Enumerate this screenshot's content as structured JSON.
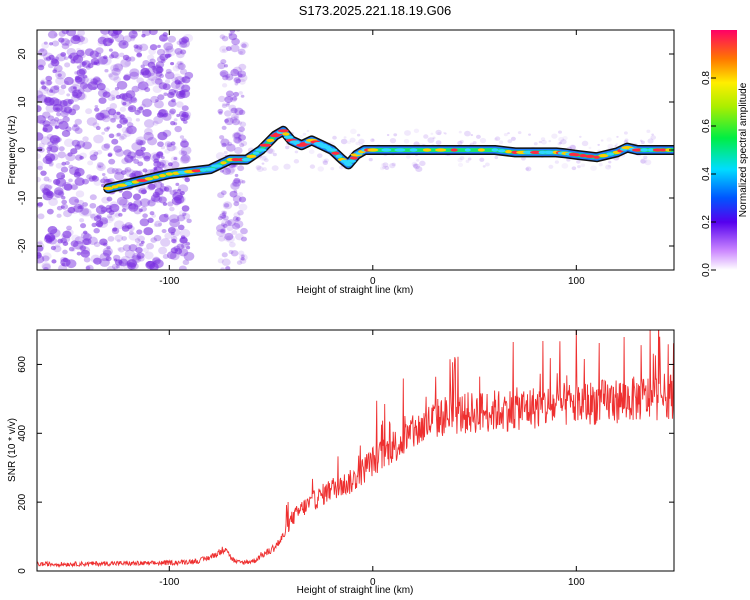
{
  "title": "S173.2025.221.18.19.G06",
  "colors": {
    "snr_line": "#ee3030",
    "ridge_outline": "#111111",
    "scatter": "#7a2fe0"
  },
  "chart_data": [
    {
      "type": "heatmap",
      "xlabel": "Height of straight line (km)",
      "ylabel": "Frequency (Hz)",
      "xlim": [
        -165,
        148
      ],
      "ylim": [
        -25,
        25
      ],
      "xticks": [
        -100,
        0,
        100
      ],
      "xtick_labels": [
        "-100",
        "0",
        "100"
      ],
      "yticks": [
        -20,
        -10,
        0,
        10,
        20
      ],
      "ytick_labels": [
        "-20",
        "-10",
        "0",
        "10",
        "20"
      ],
      "ridge": {
        "x": [
          -130,
          -120,
          -110,
          -100,
          -90,
          -80,
          -70,
          -62,
          -55,
          -48,
          -44,
          -40,
          -35,
          -30,
          -25,
          -20,
          -15,
          -12,
          -8,
          -4,
          0,
          20,
          40,
          60,
          70,
          80,
          90,
          95,
          100,
          110,
          120,
          125,
          130,
          140,
          148
        ],
        "y": [
          -8,
          -7,
          -6,
          -5,
          -4.5,
          -4,
          -2,
          -2,
          0,
          3,
          4,
          2,
          1,
          2,
          1,
          0,
          -2,
          -3,
          -1,
          0,
          0,
          0,
          0,
          0,
          -0.5,
          -0.5,
          -0.5,
          -0.7,
          -1,
          -1.5,
          -0.5,
          0.5,
          0,
          0,
          0
        ]
      },
      "colorbar": {
        "label": "Normalized spectral amplitude",
        "range": [
          0,
          1
        ],
        "ticks": [
          0.0,
          0.2,
          0.4,
          0.6,
          0.8
        ],
        "tick_labels": [
          "0.0",
          "0.2",
          "0.4",
          "0.6",
          "0.8"
        ]
      }
    },
    {
      "type": "line",
      "xlabel": "Height of straight line (km)",
      "ylabel": "SNR (10 * v/v)",
      "xlim": [
        -165,
        148
      ],
      "ylim": [
        0,
        700
      ],
      "xticks": [
        -100,
        0,
        100
      ],
      "xtick_labels": [
        "-100",
        "0",
        "100"
      ],
      "yticks": [
        0,
        200,
        400,
        600
      ],
      "ytick_labels": [
        "0",
        "200",
        "400",
        "600"
      ],
      "series": [
        {
          "name": "SNR",
          "x": [
            -165,
            -150,
            -130,
            -110,
            -95,
            -85,
            -80,
            -75,
            -72,
            -70,
            -67,
            -63,
            -58,
            -55,
            -50,
            -45,
            -40,
            -35,
            -30,
            -25,
            -20,
            -15,
            -10,
            -5,
            0,
            5,
            10,
            15,
            20,
            25,
            30,
            35,
            40,
            50,
            60,
            70,
            80,
            90,
            100,
            110,
            120,
            130,
            140,
            148
          ],
          "values": [
            20,
            20,
            22,
            22,
            25,
            30,
            40,
            55,
            70,
            40,
            25,
            25,
            30,
            45,
            60,
            90,
            150,
            180,
            200,
            220,
            240,
            250,
            260,
            290,
            320,
            340,
            360,
            380,
            400,
            420,
            440,
            450,
            455,
            460,
            465,
            470,
            475,
            480,
            485,
            490,
            495,
            500,
            505,
            510
          ]
        }
      ]
    }
  ]
}
